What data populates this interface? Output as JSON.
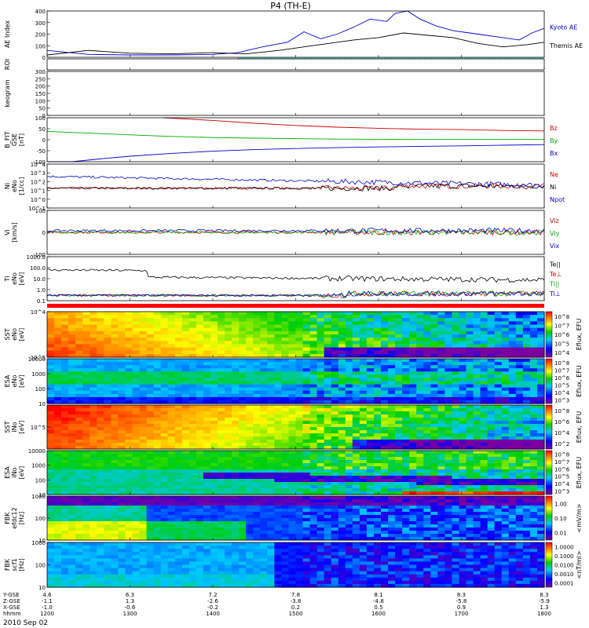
{
  "title": "P4 (TH-E)",
  "date_label": "2010 Sep 02",
  "chart_data": [
    {
      "type": "line",
      "panel": "ae-index",
      "ylabel": "AE Index",
      "ylim": [
        0,
        400
      ],
      "yticks": [
        "0",
        "100",
        "200",
        "300",
        "400"
      ],
      "series": [
        {
          "name": "Kyoto AE",
          "color": "#0000cc",
          "x": [
            12.0,
            12.5,
            13.0,
            13.5,
            14.0,
            14.3,
            14.6,
            14.9,
            15.1,
            15.3,
            15.5,
            15.7,
            15.9,
            16.1,
            16.2,
            16.35,
            16.5,
            16.7,
            16.9,
            17.1,
            17.3,
            17.5,
            17.7,
            17.85,
            18.0
          ],
          "y": [
            60,
            25,
            20,
            20,
            25,
            40,
            90,
            130,
            220,
            160,
            200,
            260,
            330,
            310,
            380,
            400,
            330,
            270,
            230,
            210,
            190,
            170,
            150,
            210,
            250
          ]
        },
        {
          "name": "Themis AE",
          "color": "#000000",
          "x": [
            12.0,
            12.5,
            13.0,
            13.5,
            14.0,
            14.4,
            14.8,
            15.1,
            15.4,
            15.7,
            16.0,
            16.3,
            16.6,
            16.9,
            17.2,
            17.5,
            17.8,
            18.0
          ],
          "y": [
            20,
            60,
            35,
            30,
            40,
            30,
            60,
            90,
            120,
            150,
            170,
            210,
            190,
            170,
            120,
            90,
            110,
            130
          ]
        }
      ]
    },
    {
      "type": "line",
      "panel": "roi",
      "ylabel": "ROI",
      "series": []
    },
    {
      "type": "heatmap",
      "panel": "keogram",
      "ylabel": "keogram",
      "ylim": [
        0,
        300
      ],
      "yticks": [
        "0",
        "50",
        "100",
        "150",
        "200",
        "250",
        "300"
      ]
    },
    {
      "type": "line",
      "panel": "b-field",
      "ylabel": "B_FIT",
      "ylabel_sub": "GSE",
      "unit": "[nT]",
      "ylim": [
        -100,
        100
      ],
      "yticks": [
        "-100",
        "-50",
        "0",
        "50",
        "100"
      ],
      "series": [
        {
          "name": "Bz",
          "color": "#cc0000",
          "x": [
            13.4,
            14.0,
            14.5,
            15.0,
            15.5,
            16.0,
            16.5,
            17.0,
            17.5,
            18.0
          ],
          "y": [
            100,
            88,
            75,
            65,
            57,
            52,
            48,
            46,
            42,
            40
          ]
        },
        {
          "name": "By",
          "color": "#00aa00",
          "x": [
            12.0,
            12.5,
            13.0,
            13.5,
            14.0,
            14.5,
            15.0,
            15.5,
            16.0,
            16.5,
            17.0,
            17.5,
            18.0
          ],
          "y": [
            38,
            30,
            22,
            15,
            10,
            7,
            5,
            3,
            2,
            1,
            1,
            1,
            1
          ]
        },
        {
          "name": "Bx",
          "color": "#0000cc",
          "x": [
            12.0,
            12.3,
            12.7,
            13.0,
            13.5,
            14.0,
            14.5,
            15.0,
            15.5,
            16.0,
            16.5,
            17.0,
            17.5,
            18.0
          ],
          "y": [
            -150,
            -100,
            -85,
            -75,
            -62,
            -52,
            -45,
            -40,
            -36,
            -33,
            -30,
            -28,
            -25,
            -22
          ]
        }
      ]
    },
    {
      "type": "line",
      "panel": "density",
      "ylabel": "Ni",
      "ylabel_sub": "eNo",
      "unit": "[1/cc]",
      "yticks": [
        "10^-1",
        "10^0",
        "10^1",
        "10^2",
        "10^3",
        "10^4"
      ],
      "series": [
        {
          "name": "Ne",
          "color": "#cc0000"
        },
        {
          "name": "Ni",
          "color": "#000000"
        },
        {
          "name": "Npot",
          "color": "#0000cc"
        }
      ]
    },
    {
      "type": "line",
      "panel": "velocity",
      "ylabel": "Vi",
      "unit": "[km/s]",
      "ylim": [
        -100,
        100
      ],
      "yticks": [
        "-100",
        "0",
        "100"
      ],
      "series": [
        {
          "name": "Viz",
          "color": "#cc0000"
        },
        {
          "name": "Viy",
          "color": "#00aa00"
        },
        {
          "name": "Vix",
          "color": "#0000cc"
        }
      ]
    },
    {
      "type": "line",
      "panel": "temperature",
      "ylabel": "Ti",
      "ylabel_sub": "eNo",
      "unit": "[eV]",
      "yticks": [
        "0.1",
        "1.0",
        "10.0",
        "100.0",
        "1000.0"
      ],
      "series": [
        {
          "name": "Te||",
          "color": "#000000"
        },
        {
          "name": "Te⊥",
          "color": "#cc0000"
        },
        {
          "name": "Ti||",
          "color": "#00aa00"
        },
        {
          "name": "Ti⊥",
          "color": "#0000cc"
        }
      ]
    },
    {
      "type": "heatmap",
      "panel": "sst-electron",
      "ylabel": "SST",
      "ylabel_sub": "eNo",
      "unit": "[eV]",
      "yticks": [
        "10^5",
        "10^4"
      ],
      "colorbar_label": "Eflux, EFU",
      "colorbar_ticks": [
        "10^4",
        "10^5",
        "10^6",
        "10^7",
        "10^8"
      ]
    },
    {
      "type": "heatmap",
      "panel": "esa-electron",
      "ylabel": "ESA",
      "ylabel_sub": "eNo",
      "unit": "[eV]",
      "yticks": [
        "10",
        "100",
        "1000",
        "10000"
      ],
      "colorbar_label": "Eflux, EFU",
      "colorbar_ticks": [
        "10^3",
        "10^4",
        "10^5",
        "10^6",
        "10^7",
        "10^8"
      ]
    },
    {
      "type": "heatmap",
      "panel": "sst-ion",
      "ylabel": "SST",
      "ylabel_sub": "iNo",
      "unit": "[eV]",
      "yticks": [
        "10^5"
      ],
      "colorbar_label": "Eflux, EFU",
      "colorbar_ticks": [
        "10^2",
        "10^4",
        "10^6",
        "10^8"
      ]
    },
    {
      "type": "heatmap",
      "panel": "esa-ion",
      "ylabel": "ESA",
      "ylabel_sub": "iNo",
      "unit": "[eV]",
      "yticks": [
        "10",
        "100",
        "1000",
        "10000"
      ],
      "colorbar_label": "Eflux, EFU",
      "colorbar_ticks": [
        "10^3",
        "10^4",
        "10^5",
        "10^6",
        "10^7",
        "10^8"
      ]
    },
    {
      "type": "heatmap",
      "panel": "fbk-e12",
      "ylabel": "FBK",
      "ylabel_sub": "efdc12",
      "unit": "[Hz]",
      "yticks": [
        "10",
        "100",
        "1000"
      ],
      "colorbar_label": "<mV/m>",
      "colorbar_ticks": [
        "0.01",
        "0.10",
        "1.00"
      ]
    },
    {
      "type": "heatmap",
      "panel": "fbk-scm1",
      "ylabel": "FBK",
      "ylabel_sub": "scf1",
      "unit": "[Hz]",
      "yticks": [
        "10",
        "100",
        "1000"
      ],
      "colorbar_label": "<nT/ml>",
      "colorbar_ticks": [
        "0.0001",
        "0.0010",
        "0.0100",
        "0.1000",
        "1.0000"
      ]
    }
  ],
  "time_axis": {
    "row_labels": [
      "Y-GSE",
      "Z-GSE",
      "X-GSE",
      "hhmm"
    ],
    "columns": [
      [
        "4.6",
        "-1.1",
        "-1.0",
        "1200"
      ],
      [
        "6.3",
        "1.3",
        "-0.6",
        "1300"
      ],
      [
        "7.2",
        "-2.6",
        "-0.2",
        "1400"
      ],
      [
        "7.8",
        "-3.8",
        "0.2",
        "1500"
      ],
      [
        "8.1",
        "-4.8",
        "0.5",
        "1600"
      ],
      [
        "8.3",
        "-5.8",
        "0.9",
        "1700"
      ],
      [
        "8.3",
        "-5.9",
        "1.3",
        "1800"
      ]
    ]
  }
}
